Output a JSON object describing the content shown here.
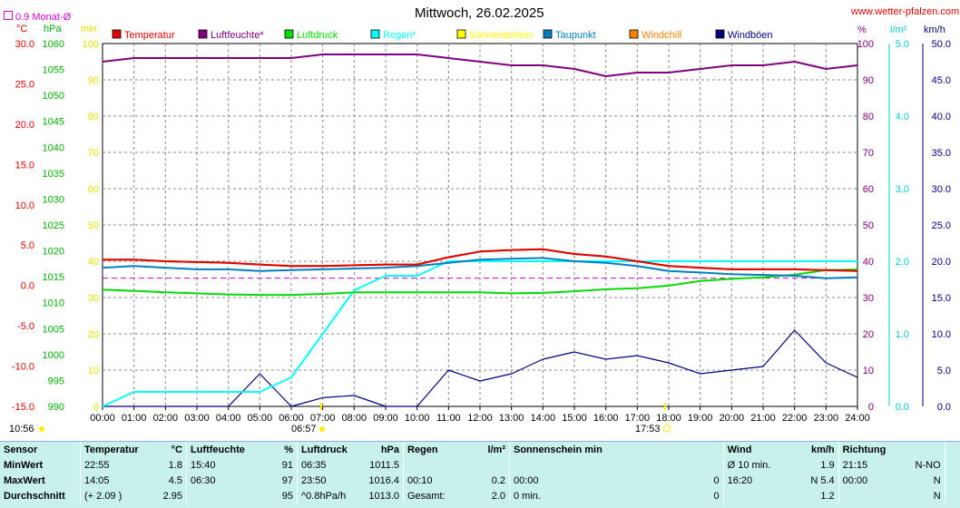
{
  "header": {
    "title": "Mittwoch, 26.02.2025",
    "site": "www.wetter-pfalzen.com",
    "monat_label": "0.9 Monat-Ø"
  },
  "legend": [
    {
      "label": "Temperatur",
      "color": "#e00000"
    },
    {
      "label": "Luftfeuchte*",
      "color": "#800080"
    },
    {
      "label": "Luftdruck",
      "color": "#00dd00"
    },
    {
      "label": "Regen*",
      "color": "#00ffff"
    },
    {
      "label": "Sonnenschein",
      "color": "#ffff00"
    },
    {
      "label": "Taupunkt",
      "color": "#0080c0"
    },
    {
      "label": "Windchill",
      "color": "#ff8000"
    },
    {
      "label": "Windböen",
      "color": "#000080"
    }
  ],
  "axes": {
    "temp_unit": "°C",
    "press_unit": "hPa",
    "min_unit": "min",
    "hum_unit": "%",
    "rain_unit": "l/m²",
    "wind_unit": "km/h",
    "temp_ticks": [
      "30.0",
      "25.0",
      "20.0",
      "15.0",
      "10.0",
      "5.0",
      "0.0",
      "-5.0",
      "-10.0",
      "-15.0"
    ],
    "press_ticks": [
      "1060",
      "1055",
      "1050",
      "1045",
      "1040",
      "1035",
      "1030",
      "1025",
      "1020",
      "1015",
      "1010",
      "1005",
      "1000",
      "995",
      "990"
    ],
    "min_ticks": [
      "100",
      "90",
      "80",
      "70",
      "60",
      "50",
      "40",
      "30",
      "20",
      "10",
      "0"
    ],
    "hum_ticks": [
      "100",
      "90",
      "80",
      "70",
      "60",
      "50",
      "40",
      "30",
      "20",
      "10",
      "0"
    ],
    "rain_ticks": [
      "5.0",
      "4.0",
      "3.0",
      "2.0",
      "1.0",
      "0.0"
    ],
    "wind_ticks": [
      "50.0",
      "45.0",
      "40.0",
      "35.0",
      "30.0",
      "25.0",
      "20.0",
      "15.0",
      "10.0",
      "5.0",
      "0.0"
    ],
    "x_ticks": [
      "00:00",
      "01:00",
      "02:00",
      "03:00",
      "04:00",
      "05:00",
      "06:00",
      "07:00",
      "08:00",
      "09:00",
      "10:00",
      "11:00",
      "12:00",
      "13:00",
      "14:00",
      "15:00",
      "16:00",
      "17:00",
      "18:00",
      "19:00",
      "20:00",
      "21:00",
      "22:00",
      "23:00",
      "24:00"
    ]
  },
  "sun": {
    "sunrise": "06:57",
    "sunset": "17:53",
    "daylength": "10:56"
  },
  "chart_data": {
    "type": "line",
    "title": "Mittwoch, 26.02.2025",
    "xlabel": "",
    "x_hours": [
      0,
      1,
      2,
      3,
      4,
      5,
      6,
      7,
      8,
      9,
      10,
      11,
      12,
      13,
      14,
      15,
      16,
      17,
      18,
      19,
      20,
      21,
      22,
      23,
      24
    ],
    "ylim_temp": [
      -15,
      30
    ],
    "ylim_press": [
      990,
      1060
    ],
    "ylim_hum": [
      0,
      100
    ],
    "ylim_rain": [
      0,
      5
    ],
    "ylim_wind": [
      0,
      50
    ],
    "monthly_avg_temp": 0.9,
    "series": [
      {
        "name": "Temperatur",
        "unit": "°C",
        "values": [
          3.2,
          3.2,
          3.0,
          2.9,
          2.8,
          2.6,
          2.4,
          2.4,
          2.5,
          2.6,
          2.6,
          3.5,
          4.2,
          4.4,
          4.5,
          3.9,
          3.6,
          3.0,
          2.4,
          2.2,
          2.0,
          2.0,
          2.0,
          1.9,
          1.8
        ]
      },
      {
        "name": "Luftfeuchte*",
        "unit": "%",
        "values": [
          95,
          96,
          96,
          96,
          96,
          96,
          96,
          97,
          97,
          97,
          97,
          96,
          95,
          94,
          94,
          93,
          91,
          92,
          92,
          93,
          94,
          94,
          95,
          93,
          94
        ]
      },
      {
        "name": "Luftdruck",
        "unit": "hPa",
        "values": [
          1012.5,
          1012.3,
          1012.0,
          1011.8,
          1011.6,
          1011.5,
          1011.5,
          1011.7,
          1012.0,
          1012.0,
          1012.0,
          1012.0,
          1012.0,
          1011.8,
          1011.9,
          1012.2,
          1012.6,
          1012.8,
          1013.3,
          1014.2,
          1014.6,
          1014.9,
          1015.4,
          1016.3,
          1016.4
        ]
      },
      {
        "name": "Regen*",
        "unit": "l/m²",
        "values": [
          0,
          0.2,
          0.2,
          0.2,
          0.2,
          0.2,
          0.4,
          1.0,
          1.6,
          1.8,
          1.8,
          2.0,
          2.0,
          2.0,
          2.0,
          2.0,
          2.0,
          2.0,
          2.0,
          2.0,
          2.0,
          2.0,
          2.0,
          2.0,
          2.0
        ]
      },
      {
        "name": "Taupunkt",
        "unit": "°C",
        "values": [
          2.2,
          2.4,
          2.2,
          2.0,
          2.0,
          1.8,
          1.9,
          2.0,
          2.1,
          2.2,
          2.4,
          2.8,
          3.2,
          3.3,
          3.4,
          3.0,
          2.8,
          2.4,
          1.8,
          1.6,
          1.4,
          1.3,
          1.2,
          0.9,
          1.0
        ]
      },
      {
        "name": "Windchill",
        "unit": "°C",
        "values": [
          3.2,
          3.2,
          3.0,
          2.9,
          2.8,
          2.6,
          2.4,
          2.4,
          2.5,
          2.6,
          2.6,
          3.5,
          4.2,
          4.4,
          4.5,
          3.9,
          3.6,
          3.0,
          2.4,
          2.2,
          2.0,
          2.0,
          2.0,
          1.9,
          1.8
        ]
      },
      {
        "name": "Windböen",
        "unit": "km/h",
        "values": [
          0,
          0,
          0,
          0,
          0,
          4.5,
          0,
          1.2,
          1.5,
          0,
          0,
          5.0,
          3.5,
          4.5,
          6.5,
          7.5,
          6.5,
          7.0,
          6.0,
          4.5,
          5.0,
          5.5,
          10.5,
          6.0,
          4.0
        ]
      }
    ]
  },
  "stats": {
    "headers": {
      "sensor": "Sensor",
      "temp": "Temperatur",
      "temp_u": "°C",
      "hum": "Luftfeuchte",
      "hum_u": "%",
      "press": "Luftdruck",
      "press_u": "hPa",
      "rain": "Regen",
      "rain_u": "l/m²",
      "sun": "Sonnenschein min",
      "wind": "Wind",
      "wind_u": "km/h",
      "dir": "Richtung"
    },
    "rows": [
      {
        "label": "MinWert",
        "temp_t": "22:55",
        "temp_v": "1.8",
        "hum_t": "15:40",
        "hum_v": "91",
        "press_t": "06:35",
        "press_v": "1011.5",
        "rain_t": "",
        "rain_v": "",
        "sun_t": "",
        "sun_v": "",
        "wind_t": "Ø 10 min.",
        "wind_v": "1.9",
        "dir_t": "21:15",
        "dir_v": "N-NO"
      },
      {
        "label": "MaxWert",
        "temp_t": "14:05",
        "temp_v": "4.5",
        "hum_t": "06:30",
        "hum_v": "97",
        "press_t": "23:50",
        "press_v": "1016.4",
        "rain_t": "00:10",
        "rain_v": "0.2",
        "sun_t": "00:00",
        "sun_v": "0",
        "wind_t": "16:20",
        "wind_v": "N 5.4",
        "dir_t": "00:00",
        "dir_v": "N"
      },
      {
        "label": "Durchschnitt",
        "temp_t": "(+ 2.09 )",
        "temp_v": "2.95",
        "hum_t": "",
        "hum_v": "95",
        "press_t": "^0.8hPa/h",
        "press_v": "1013.0",
        "rain_t": "Gesamt:",
        "rain_v": "2.0",
        "sun_t": "0 min.",
        "sun_v": "0",
        "wind_t": "",
        "wind_v": "1.2",
        "dir_t": "",
        "dir_v": "N"
      }
    ]
  }
}
